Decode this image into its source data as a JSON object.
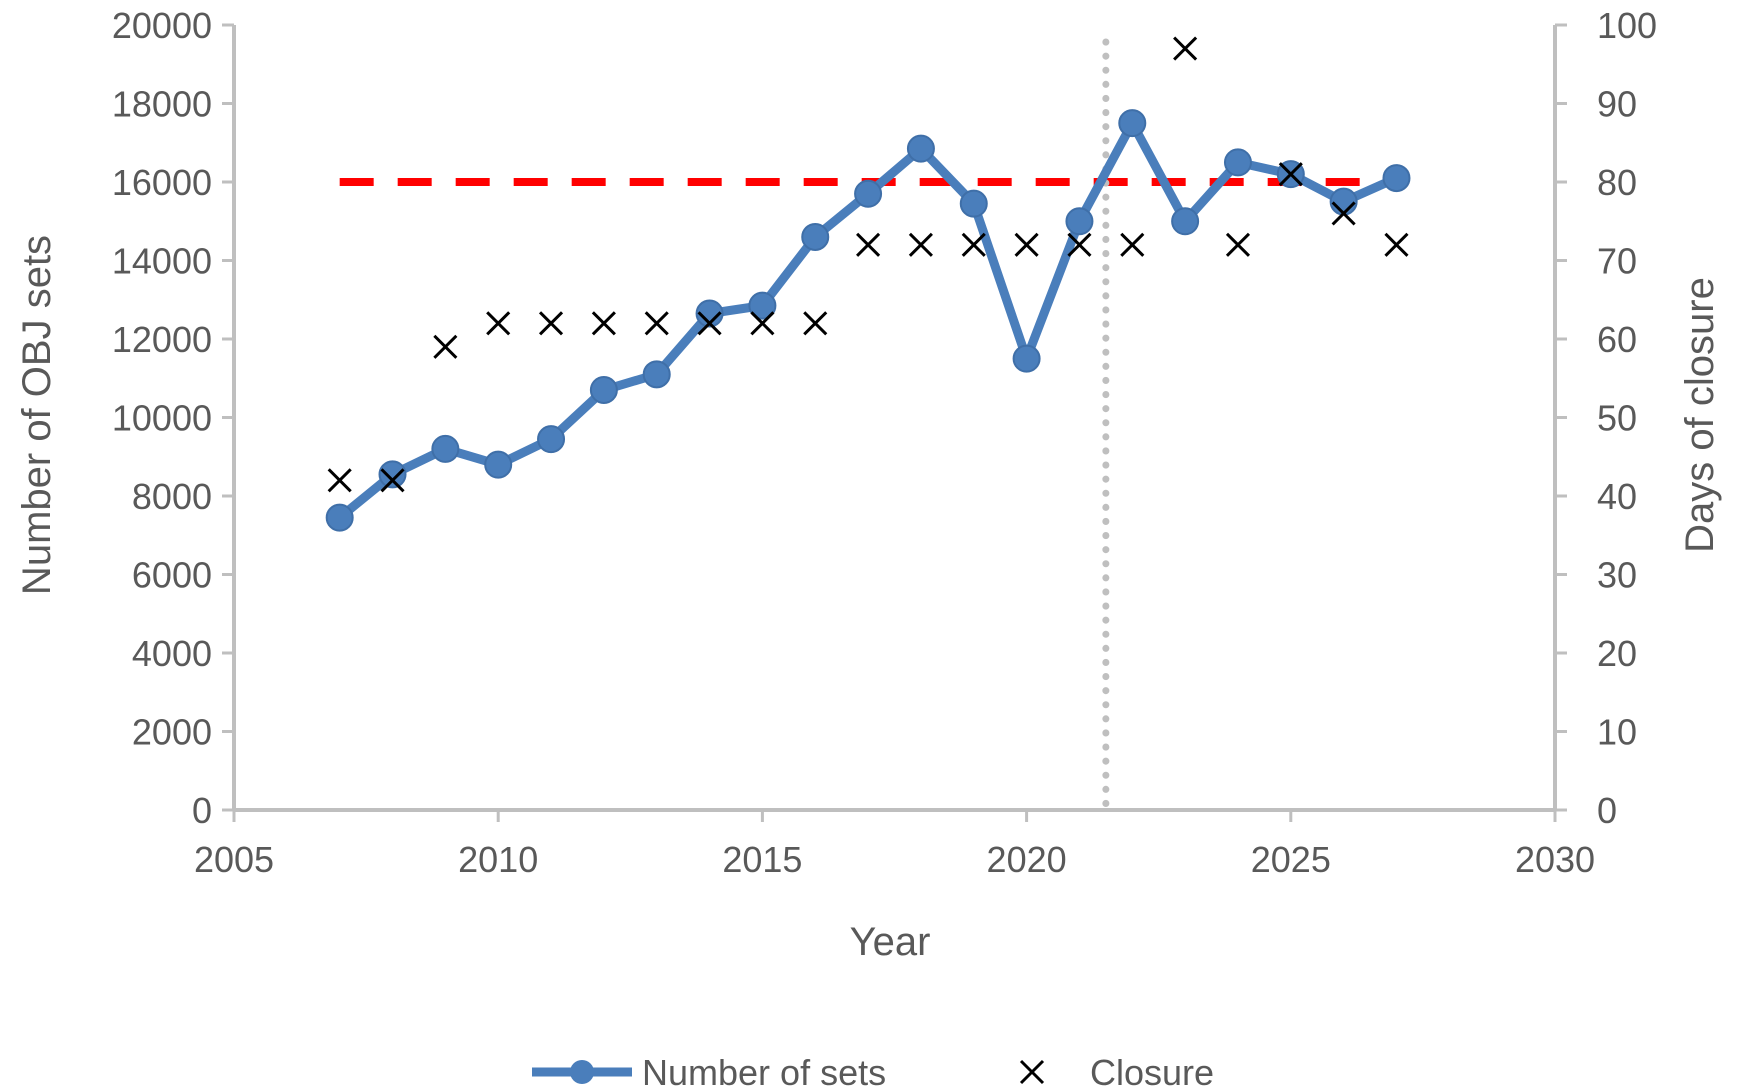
{
  "chart_data": {
    "type": "line",
    "xlabel": "Year",
    "ylabel": "Number of OBJ sets",
    "y2label": "Days of closure",
    "xlim": [
      2005,
      2030
    ],
    "xticks": [
      2005,
      2010,
      2015,
      2020,
      2025,
      2030
    ],
    "ylim": [
      0,
      20000
    ],
    "yticks": [
      0,
      2000,
      4000,
      6000,
      8000,
      10000,
      12000,
      14000,
      16000,
      18000,
      20000
    ],
    "y2lim": [
      0,
      100
    ],
    "y2ticks": [
      0,
      10,
      20,
      30,
      40,
      50,
      60,
      70,
      80,
      90,
      100
    ],
    "grid": false,
    "legend_position": "bottom",
    "series": [
      {
        "name": "Number of sets",
        "kind": "line-marker",
        "axis": "left",
        "color": "#4a7ebb",
        "x": [
          2007,
          2008,
          2009,
          2010,
          2011,
          2012,
          2013,
          2014,
          2015,
          2016,
          2017,
          2018,
          2019,
          2020,
          2021,
          2022,
          2023,
          2024,
          2025,
          2026,
          2027
        ],
        "y": [
          7450,
          8550,
          9200,
          8800,
          9450,
          10700,
          11100,
          12650,
          12850,
          14600,
          15700,
          16850,
          15450,
          11500,
          15000,
          17500,
          15000,
          16500,
          16200,
          15500,
          16100
        ]
      },
      {
        "name": "Closure",
        "kind": "scatter-x",
        "axis": "right",
        "color": "#000000",
        "x": [
          2007,
          2008,
          2009,
          2010,
          2011,
          2012,
          2013,
          2014,
          2015,
          2016,
          2017,
          2018,
          2019,
          2020,
          2021,
          2022,
          2023,
          2024,
          2025,
          2026,
          2027
        ],
        "y": [
          42,
          42,
          59,
          62,
          62,
          62,
          62,
          62,
          62,
          62,
          72,
          72,
          72,
          72,
          72,
          72,
          97,
          72,
          81,
          76,
          72
        ]
      }
    ],
    "reference_lines": [
      {
        "orientation": "horizontal",
        "axis": "left",
        "value": 16000,
        "x_from": 2007,
        "x_to": 2027,
        "style": "dashed",
        "color": "#ff0000"
      },
      {
        "orientation": "vertical",
        "value": 2021.5,
        "style": "dotted",
        "color": "#bfbfbf"
      }
    ]
  },
  "legend": {
    "items": [
      "Number of sets",
      "Closure"
    ]
  },
  "colors": {
    "axis": "#bfbfbf",
    "text": "#595959",
    "sets_line": "#4a7ebb",
    "sets_marker": "#4a7ebb",
    "closure_marker": "#000000",
    "threshold_line": "#ff0000",
    "divider_line": "#bfbfbf"
  }
}
